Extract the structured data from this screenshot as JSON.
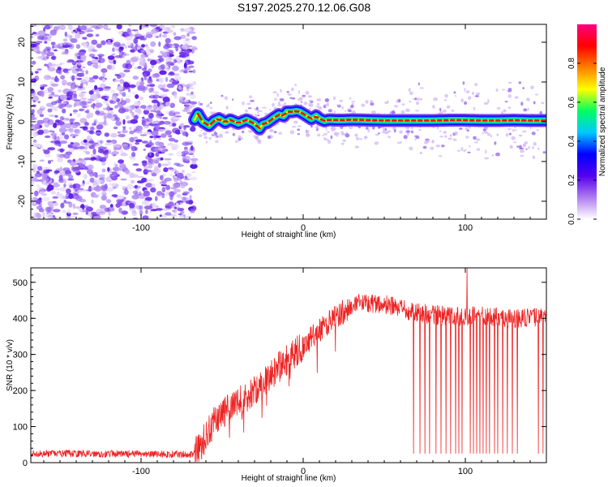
{
  "title": "S197.2025.270.12.06.G08",
  "chart_data": [
    {
      "type": "heatmap",
      "title": "S197.2025.270.12.06.G08",
      "xlabel": "Height of straight line (km)",
      "ylabel": "Frequency (Hz)",
      "xlim": [
        -168,
        150
      ],
      "ylim": [
        -24.5,
        24.5
      ],
      "x_ticks": [
        -100,
        0,
        100
      ],
      "y_ticks": [
        -20,
        -10,
        0,
        10,
        20
      ],
      "colorbar": {
        "label": "Normalized spectral amplitude",
        "range": [
          0,
          1
        ],
        "ticks": [
          0.0,
          0.2,
          0.4,
          0.6,
          0.8
        ],
        "tick_labels": [
          "0.0",
          "0.2",
          "0.4",
          "0.6",
          "0.8"
        ],
        "colormap": [
          "#ffffff",
          "#b07cf0",
          "#5500ee",
          "#0000ff",
          "#00c8ff",
          "#00ff60",
          "#ffff00",
          "#ff8000",
          "#ff0000",
          "#ff0080"
        ]
      },
      "noise_region": {
        "x_from": -168,
        "x_to": -67,
        "y_from": -24.5,
        "y_to": 24.5
      },
      "signal_trace": {
        "x": [
          -67,
          -65,
          -62,
          -58,
          -55,
          -52,
          -48,
          -45,
          -40,
          -35,
          -30,
          -27,
          -25,
          -22,
          -18,
          -15,
          -12,
          -10,
          -7,
          -4,
          -2,
          2,
          5,
          8,
          10,
          13,
          16,
          20,
          25,
          30,
          40,
          50,
          60,
          70,
          80,
          90,
          100,
          110,
          120,
          130,
          140,
          150
        ],
        "y": [
          0.5,
          2.0,
          0.0,
          -1.0,
          0.2,
          0.8,
          -0.2,
          0.5,
          -0.4,
          0.5,
          -0.5,
          -1.8,
          -0.6,
          -0.2,
          1.0,
          1.8,
          1.4,
          2.5,
          2.5,
          2.7,
          2.5,
          1.5,
          0.7,
          1.5,
          0.8,
          0.2,
          0.5,
          0.4,
          0.4,
          0.5,
          0.4,
          0.3,
          0.3,
          0.3,
          0.3,
          0.4,
          0.4,
          0.3,
          0.3,
          0.4,
          0.3,
          0.3
        ]
      }
    },
    {
      "type": "line",
      "xlabel": "Height of straight line (km)",
      "ylabel": "SNR (10 * v/v)",
      "xlim": [
        -168,
        150
      ],
      "ylim": [
        0,
        540
      ],
      "x_ticks": [
        -100,
        0,
        100
      ],
      "y_ticks": [
        0,
        100,
        200,
        300,
        400,
        500
      ],
      "series": [
        {
          "name": "SNR",
          "color": "#ee2222",
          "trend": {
            "x": [
              -168,
              -140,
              -100,
              -80,
              -67,
              -63,
              -60,
              -55,
              -50,
              -45,
              -40,
              -35,
              -30,
              -25,
              -20,
              -15,
              -10,
              -5,
              0,
              5,
              10,
              15,
              20,
              25,
              30,
              35,
              40,
              45,
              50,
              55,
              60,
              65,
              70,
              80,
              90,
              100,
              110,
              120,
              130,
              140,
              150
            ],
            "y": [
              25,
              25,
              24,
              23,
              24,
              45,
              75,
              115,
              135,
              150,
              165,
              185,
              200,
              220,
              245,
              265,
              285,
              305,
              320,
              345,
              365,
              385,
              405,
              420,
              430,
              440,
              445,
              440,
              438,
              432,
              425,
              420,
              418,
              410,
              405,
              405,
              405,
              405,
              400,
              400,
              405
            ]
          },
          "dropouts_x": [
            68,
            72,
            75,
            78,
            82,
            85,
            88,
            91,
            94,
            96,
            98,
            101,
            103,
            105,
            107,
            109,
            111,
            113,
            115,
            118,
            120,
            123,
            126,
            129,
            132,
            145,
            148
          ],
          "dropout_value": 25,
          "peak": {
            "x": 101,
            "y": 540
          }
        }
      ]
    }
  ]
}
